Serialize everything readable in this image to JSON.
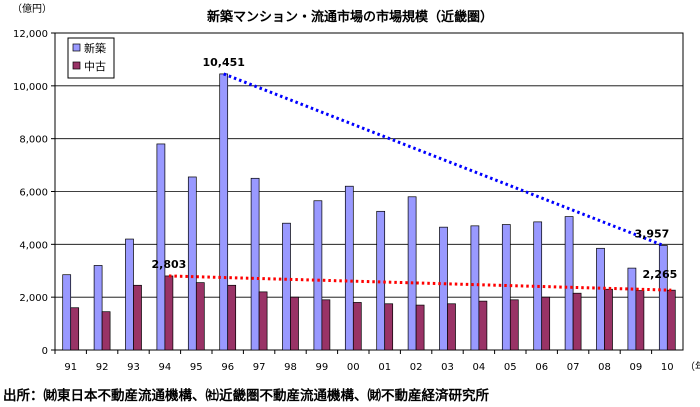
{
  "chart_data": {
    "type": "bar",
    "title": "新築マンション・流通市場の市場規模（近畿圏）",
    "ylabel": "（億円）",
    "xlabel": "（年）",
    "categories": [
      "91",
      "92",
      "93",
      "94",
      "95",
      "96",
      "97",
      "98",
      "99",
      "00",
      "01",
      "02",
      "03",
      "04",
      "05",
      "06",
      "07",
      "08",
      "09",
      "10"
    ],
    "ylim": [
      0,
      12000
    ],
    "yticks": [
      "0",
      "2,000",
      "4,000",
      "6,000",
      "8,000",
      "10,000",
      "12,000"
    ],
    "ytick_values": [
      0,
      2000,
      4000,
      6000,
      8000,
      10000,
      12000
    ],
    "grid": true,
    "legend_position": "top-left",
    "series": [
      {
        "name": "新築",
        "color": "#9999ff",
        "values": [
          2850,
          3200,
          4200,
          7800,
          6550,
          10451,
          6500,
          4800,
          5650,
          6200,
          5250,
          5800,
          4650,
          4700,
          4750,
          4850,
          5050,
          3850,
          3100,
          3957
        ]
      },
      {
        "name": "中古",
        "color": "#993366",
        "values": [
          1600,
          1450,
          2450,
          2803,
          2550,
          2450,
          2200,
          2000,
          1900,
          1800,
          1750,
          1700,
          1750,
          1850,
          1900,
          2000,
          2150,
          2300,
          2250,
          2265
        ]
      }
    ],
    "annotations": [
      {
        "text": "10,451",
        "series": 0,
        "index": 5
      },
      {
        "text": "3,957",
        "series": 0,
        "index": 19
      },
      {
        "text": "2,803",
        "series": 1,
        "index": 3
      },
      {
        "text": "2,265",
        "series": 1,
        "index": 19
      }
    ],
    "trendlines": [
      {
        "series": 0,
        "from_index": 5,
        "to_index": 19,
        "color": "#0000ff",
        "style": "dotted"
      },
      {
        "series": 1,
        "from_index": 3,
        "to_index": 19,
        "color": "#ff0000",
        "style": "dotted"
      }
    ]
  },
  "footer": {
    "source": "出所：㈶東日本不動産流通機構、㈳近畿圏不動産流通機構、㈶不動産経済研究所"
  }
}
